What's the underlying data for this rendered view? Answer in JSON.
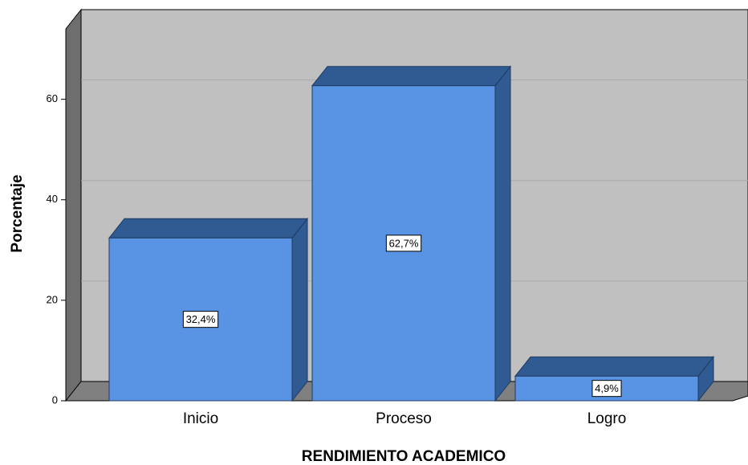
{
  "chart_data": {
    "type": "bar3d",
    "x_label": "RENDIMIENTO ACADEMICO",
    "y_label": "Porcentaje",
    "categories": [
      "Inicio",
      "Proceso",
      "Logro"
    ],
    "values": [
      32.4,
      62.7,
      4.9
    ],
    "value_labels": [
      "32,4%",
      "62,7%",
      "4,9%"
    ],
    "color": "#5894e3",
    "ylim": [
      0,
      74
    ],
    "yticks": [
      0,
      20,
      40,
      60
    ],
    "grid": true
  }
}
